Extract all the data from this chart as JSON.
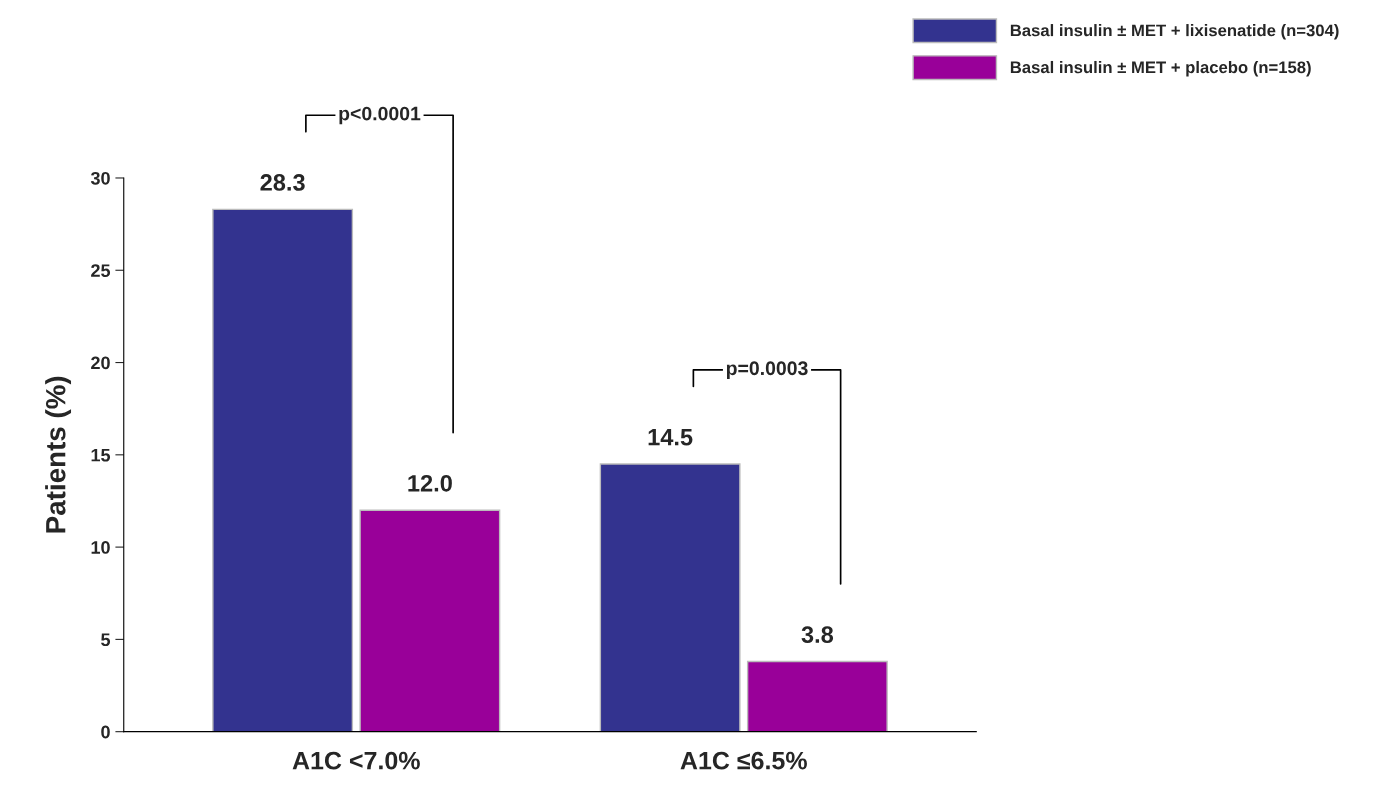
{
  "chart_data": {
    "type": "bar",
    "ylabel": "Patients (%)",
    "categories": [
      "A1C <7.0%",
      "A1C ≤6.5%"
    ],
    "series": [
      {
        "name": "Basal insulin ± MET + lixisenatide (n=304)",
        "color": "#33338f",
        "values": [
          28.3,
          14.5
        ],
        "value_labels": [
          "28.3",
          "14.5"
        ]
      },
      {
        "name": "Basal insulin ± MET + placebo (n=158)",
        "color": "#990099",
        "values": [
          12.0,
          3.8
        ],
        "value_labels": [
          "12.0",
          "3.8"
        ]
      }
    ],
    "ylim": [
      0,
      30
    ],
    "yticks": [
      0,
      5,
      10,
      15,
      20,
      25,
      30
    ],
    "legend": "top right",
    "grid": false,
    "annotations": [
      "p<0.0001",
      "p=0.0003"
    ]
  }
}
